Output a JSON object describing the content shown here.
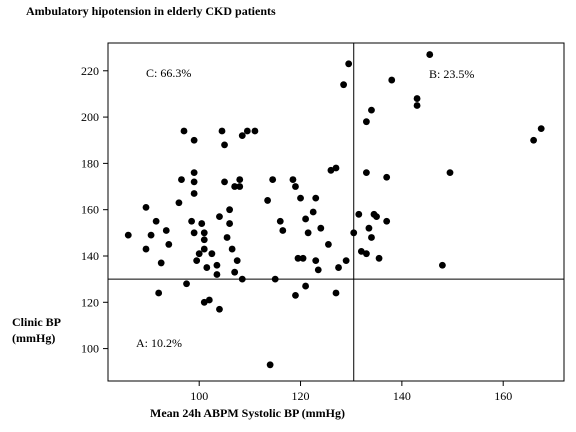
{
  "chart_data": {
    "type": "scatter",
    "title": "Ambulatory hipotension in elderly CKD patients",
    "xlabel": "Mean 24h ABPM Systolic BP (mmHg)",
    "ylabel_line1": "Clinic BP",
    "ylabel_line2": "(mmHg)",
    "xlim": [
      82,
      172
    ],
    "ylim": [
      86,
      232
    ],
    "x_ticks": [
      100,
      120,
      140,
      160
    ],
    "y_ticks": [
      100,
      120,
      140,
      160,
      180,
      200,
      220
    ],
    "reference_lines": {
      "x": 130.5,
      "y": 130
    },
    "quadrant_labels": {
      "c": "C: 66.3%",
      "b": "B: 23.5%",
      "a": "A: 10.2%"
    },
    "grid": false,
    "marker_color": "#000000",
    "points": [
      [
        86,
        149
      ],
      [
        89.5,
        161
      ],
      [
        89.5,
        143
      ],
      [
        90.5,
        149
      ],
      [
        91.5,
        155
      ],
      [
        92,
        124
      ],
      [
        92.5,
        137
      ],
      [
        93.5,
        151
      ],
      [
        94,
        145
      ],
      [
        96,
        163
      ],
      [
        96.5,
        173
      ],
      [
        97,
        194
      ],
      [
        97.5,
        128
      ],
      [
        98.5,
        155
      ],
      [
        99,
        190
      ],
      [
        99,
        176
      ],
      [
        99,
        172
      ],
      [
        99,
        167
      ],
      [
        99,
        150
      ],
      [
        99.5,
        138
      ],
      [
        100,
        141
      ],
      [
        100.5,
        154
      ],
      [
        101,
        150
      ],
      [
        101,
        147
      ],
      [
        101,
        143
      ],
      [
        101,
        120
      ],
      [
        101.5,
        135
      ],
      [
        102,
        121
      ],
      [
        102.5,
        141
      ],
      [
        103.5,
        132
      ],
      [
        103.5,
        136
      ],
      [
        104,
        157
      ],
      [
        104,
        117
      ],
      [
        104.5,
        194
      ],
      [
        105,
        188
      ],
      [
        105,
        172
      ],
      [
        105.5,
        148
      ],
      [
        106,
        160
      ],
      [
        106,
        154
      ],
      [
        106.5,
        143
      ],
      [
        107,
        170
      ],
      [
        107,
        133
      ],
      [
        107.5,
        138
      ],
      [
        108,
        173
      ],
      [
        108,
        170
      ],
      [
        108.5,
        130
      ],
      [
        108.5,
        192
      ],
      [
        109.5,
        194
      ],
      [
        111,
        194
      ],
      [
        113.5,
        164
      ],
      [
        114,
        93
      ],
      [
        114.5,
        173
      ],
      [
        115,
        130
      ],
      [
        116,
        155
      ],
      [
        116.5,
        151
      ],
      [
        118.5,
        173
      ],
      [
        119,
        170
      ],
      [
        119,
        123
      ],
      [
        119.5,
        139
      ],
      [
        120,
        165
      ],
      [
        120.5,
        139
      ],
      [
        121,
        156
      ],
      [
        121,
        127
      ],
      [
        121.5,
        150
      ],
      [
        122.5,
        159
      ],
      [
        123,
        165
      ],
      [
        123,
        138
      ],
      [
        123.5,
        134
      ],
      [
        124,
        152
      ],
      [
        125.5,
        145
      ],
      [
        126,
        177
      ],
      [
        127,
        178
      ],
      [
        127,
        124
      ],
      [
        127.5,
        135
      ],
      [
        128.5,
        214
      ],
      [
        129,
        138
      ],
      [
        129.5,
        223
      ],
      [
        130.5,
        150
      ],
      [
        131.5,
        158
      ],
      [
        132,
        142
      ],
      [
        133,
        176
      ],
      [
        133,
        198
      ],
      [
        133,
        141
      ],
      [
        133.5,
        152
      ],
      [
        134,
        203
      ],
      [
        134,
        148
      ],
      [
        134.5,
        158
      ],
      [
        135,
        157
      ],
      [
        135.5,
        139
      ],
      [
        137,
        174
      ],
      [
        137,
        155
      ],
      [
        138,
        216
      ],
      [
        143,
        208
      ],
      [
        143,
        205
      ],
      [
        145.5,
        227
      ],
      [
        148,
        136
      ],
      [
        149.5,
        176
      ],
      [
        166,
        190
      ],
      [
        167.5,
        195
      ]
    ]
  }
}
